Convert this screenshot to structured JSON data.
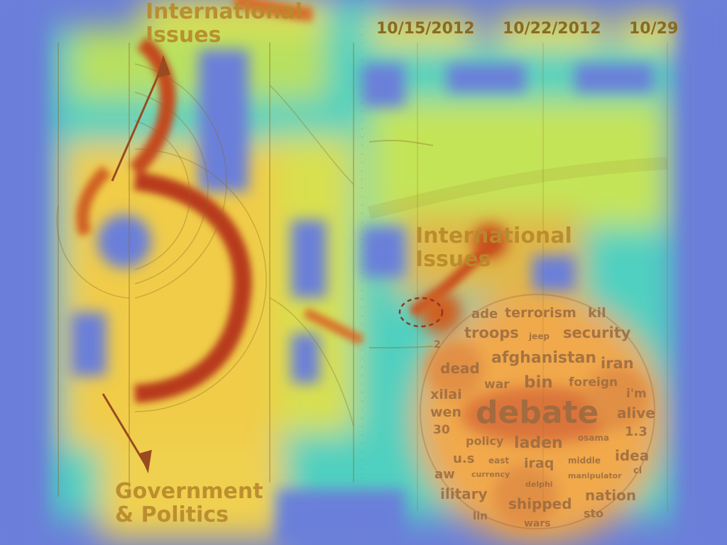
{
  "left_panel": {
    "top_label": "International\nIssues",
    "bottom_label": "Government\n& Politics"
  },
  "timeline": {
    "dates": [
      "10/15/2012",
      "10/22/2012",
      "10/29"
    ]
  },
  "right_panel": {
    "topic_label": "International\nIssues"
  },
  "word_cloud": {
    "words": [
      {
        "text": "ade"
      },
      {
        "text": "terrorism"
      },
      {
        "text": "kil"
      },
      {
        "text": "troops"
      },
      {
        "text": "jeep"
      },
      {
        "text": "security"
      },
      {
        "text": "afghanistan"
      },
      {
        "text": "dead"
      },
      {
        "text": "iran"
      },
      {
        "text": "war"
      },
      {
        "text": "bin"
      },
      {
        "text": "foreign"
      },
      {
        "text": "xilai"
      },
      {
        "text": "i'm"
      },
      {
        "text": "wen"
      },
      {
        "text": "debate"
      },
      {
        "text": "alive"
      },
      {
        "text": "30"
      },
      {
        "text": "policy"
      },
      {
        "text": "laden"
      },
      {
        "text": "osama"
      },
      {
        "text": "1.3"
      },
      {
        "text": "u.s"
      },
      {
        "text": "east"
      },
      {
        "text": "iraq"
      },
      {
        "text": "middle"
      },
      {
        "text": "idea"
      },
      {
        "text": "aw"
      },
      {
        "text": "currency"
      },
      {
        "text": "delphi"
      },
      {
        "text": "manipulator"
      },
      {
        "text": "ilitary"
      },
      {
        "text": "shipped"
      },
      {
        "text": "nation"
      },
      {
        "text": "lin"
      },
      {
        "text": "wars"
      },
      {
        "text": "sto"
      },
      {
        "text": "2"
      },
      {
        "text": "ci"
      }
    ]
  }
}
